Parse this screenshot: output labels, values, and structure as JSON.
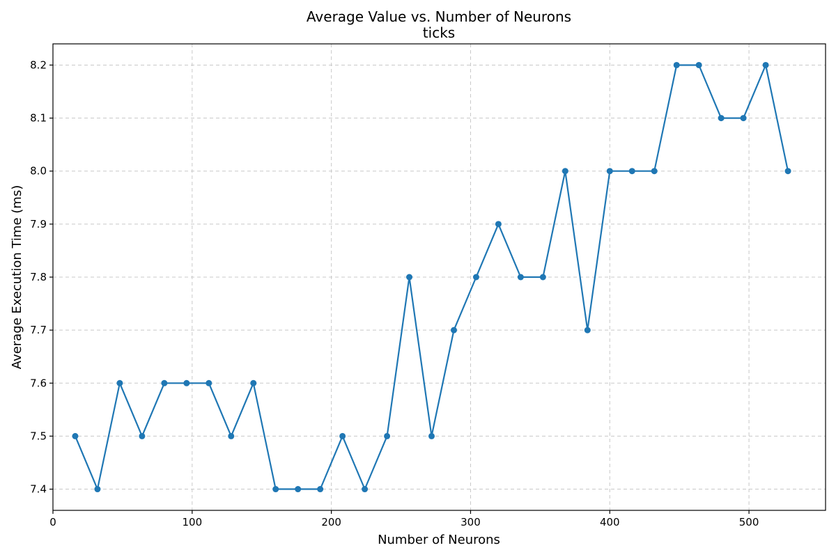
{
  "chart_data": {
    "type": "line",
    "title": "Average Value vs. Number of Neurons",
    "subtitle": "ticks",
    "xlabel": "Number of Neurons",
    "ylabel": "Average Execution Time (ms)",
    "xlim": [
      0,
      555
    ],
    "ylim": [
      7.36,
      8.24
    ],
    "xticks": [
      0,
      100,
      200,
      300,
      400,
      500
    ],
    "yticks": [
      7.4,
      7.5,
      7.6,
      7.7,
      7.8,
      7.9,
      8.0,
      8.1,
      8.2
    ],
    "grid": true,
    "series_color": "#1f77b4",
    "series": [
      {
        "x": [
          16,
          32,
          48,
          64,
          80,
          96,
          112,
          128,
          144,
          160,
          176,
          192,
          208,
          224,
          240,
          256,
          272,
          288,
          304,
          320,
          336,
          352,
          368,
          384,
          400,
          416,
          432,
          448,
          464,
          480,
          496,
          512,
          528
        ],
        "values": [
          7.5,
          7.4,
          7.6,
          7.5,
          7.6,
          7.6,
          7.6,
          7.5,
          7.6,
          7.4,
          7.4,
          7.4,
          7.5,
          7.4,
          7.5,
          7.8,
          7.5,
          7.7,
          7.8,
          7.9,
          7.8,
          7.8,
          8.0,
          7.7,
          8.0,
          8.0,
          8.0,
          8.2,
          8.2,
          8.1,
          8.1,
          8.2,
          8.0
        ]
      }
    ]
  }
}
